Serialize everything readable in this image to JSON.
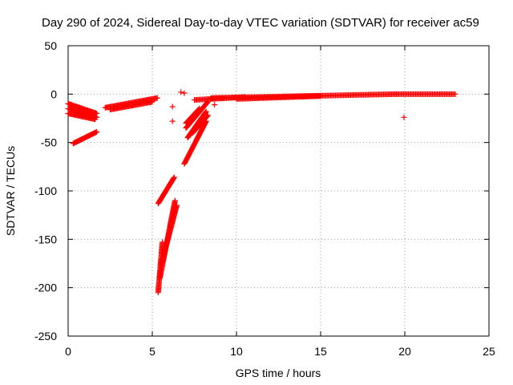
{
  "chart_data": {
    "type": "scatter",
    "title": "Day 290 of 2024, Sidereal Day-to-day VTEC variation (SDTVAR) for receiver ac59",
    "xlabel": "GPS time / hours",
    "ylabel": "SDTVAR / TECUs",
    "xlim": [
      0,
      25
    ],
    "ylim": [
      -250,
      50
    ],
    "xticks": [
      0,
      5,
      10,
      15,
      20,
      25
    ],
    "yticks": [
      -250,
      -200,
      -150,
      -100,
      -50,
      0,
      50
    ],
    "grid": true,
    "marker": "+",
    "color": "#ff0000",
    "segments": [
      {
        "name": "early-upper-a",
        "x_start": 0.0,
        "x_end": 1.7,
        "y_start": -10,
        "y_end": -20
      },
      {
        "name": "early-upper-b",
        "x_start": 0.0,
        "x_end": 1.7,
        "y_start": -15,
        "y_end": -24
      },
      {
        "name": "early-mid",
        "x_start": 0.0,
        "x_end": 1.6,
        "y_start": -20,
        "y_end": -26
      },
      {
        "name": "early-low",
        "x_start": 0.3,
        "x_end": 1.7,
        "y_start": -51,
        "y_end": -39
      },
      {
        "name": "rise-2-5",
        "x_start": 2.2,
        "x_end": 5.3,
        "y_start": -14,
        "y_end": -4
      },
      {
        "name": "rise-3-5",
        "x_start": 2.5,
        "x_end": 5.0,
        "y_start": -16,
        "y_end": -8
      },
      {
        "name": "drop-a",
        "x_start": 5.35,
        "x_end": 5.6,
        "y_start": -205,
        "y_end": -153
      },
      {
        "name": "drop-b",
        "x_start": 5.45,
        "x_end": 6.35,
        "y_start": -190,
        "y_end": -110
      },
      {
        "name": "drop-c",
        "x_start": 5.55,
        "x_end": 6.45,
        "y_start": -175,
        "y_end": -115
      },
      {
        "name": "drop-d",
        "x_start": 5.35,
        "x_end": 6.3,
        "y_start": -113,
        "y_end": -86
      },
      {
        "name": "recov-a",
        "x_start": 6.9,
        "x_end": 8.2,
        "y_start": -72,
        "y_end": -28
      },
      {
        "name": "recov-b",
        "x_start": 7.0,
        "x_end": 8.3,
        "y_start": -35,
        "y_end": -8
      },
      {
        "name": "recov-c",
        "x_start": 7.1,
        "x_end": 8.2,
        "y_start": -45,
        "y_end": -18
      },
      {
        "name": "recov-d",
        "x_start": 7.0,
        "x_end": 7.8,
        "y_start": -30,
        "y_end": -15
      },
      {
        "name": "recov-e",
        "x_start": 7.4,
        "x_end": 8.3,
        "y_start": -40,
        "y_end": -22
      },
      {
        "name": "plateau-a",
        "x_start": 7.5,
        "x_end": 10.5,
        "y_start": -6,
        "y_end": -3
      },
      {
        "name": "plateau-b",
        "x_start": 8.5,
        "x_end": 14.0,
        "y_start": -4,
        "y_end": -2
      },
      {
        "name": "plateau-c",
        "x_start": 14.0,
        "x_end": 19.5,
        "y_start": -2,
        "y_end": 0
      },
      {
        "name": "plateau-d",
        "x_start": 19.5,
        "x_end": 23.0,
        "y_start": 0,
        "y_end": 0
      },
      {
        "name": "plateau-e",
        "x_start": 10.0,
        "x_end": 15.0,
        "y_start": -5,
        "y_end": -2
      }
    ],
    "isolated_points": [
      {
        "x": 0.05,
        "y": -10
      },
      {
        "x": 0.0,
        "y": -20
      },
      {
        "x": 6.2,
        "y": -13
      },
      {
        "x": 6.2,
        "y": -28
      },
      {
        "x": 6.7,
        "y": 2
      },
      {
        "x": 6.9,
        "y": 1
      },
      {
        "x": 8.7,
        "y": -11
      },
      {
        "x": 19.95,
        "y": -24
      }
    ]
  }
}
